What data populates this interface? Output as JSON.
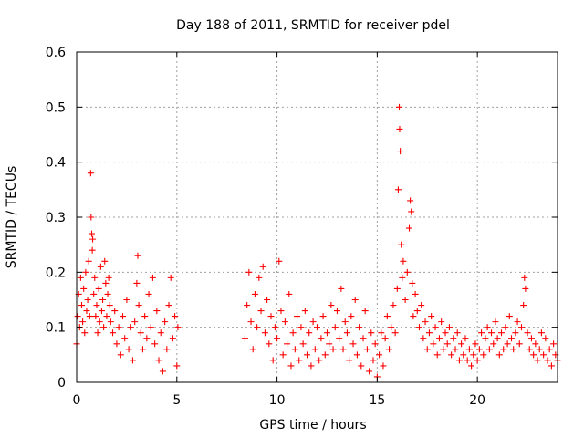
{
  "chart_data": {
    "type": "scatter",
    "title": "Day 188 of 2011, SRMTID for receiver pdel",
    "xlabel": "GPS time / hours",
    "ylabel": "SRMTID / TECUs",
    "xlim": [
      0,
      24
    ],
    "ylim": [
      0,
      0.6
    ],
    "xticks": [
      0,
      5,
      10,
      15,
      20
    ],
    "xtick_labels": [
      "0",
      "5",
      "10",
      "15",
      "20"
    ],
    "yticks": [
      0,
      0.1,
      0.2,
      0.3,
      0.4,
      0.5,
      0.6
    ],
    "ytick_labels": [
      "0",
      "0.1",
      "0.2",
      "0.3",
      "0.4",
      "0.5",
      "0.6"
    ],
    "grid": true,
    "marker": "plus",
    "series": [
      {
        "name": "SRMTID",
        "color": "#ff0000",
        "points": [
          [
            0.0,
            0.07
          ],
          [
            0.05,
            0.12
          ],
          [
            0.1,
            0.16
          ],
          [
            0.15,
            0.1
          ],
          [
            0.2,
            0.19
          ],
          [
            0.25,
            0.14
          ],
          [
            0.3,
            0.11
          ],
          [
            0.35,
            0.17
          ],
          [
            0.4,
            0.09
          ],
          [
            0.45,
            0.2
          ],
          [
            0.5,
            0.13
          ],
          [
            0.55,
            0.15
          ],
          [
            0.6,
            0.22
          ],
          [
            0.65,
            0.12
          ],
          [
            0.7,
            0.38
          ],
          [
            0.72,
            0.3
          ],
          [
            0.75,
            0.27
          ],
          [
            0.78,
            0.24
          ],
          [
            0.8,
            0.26
          ],
          [
            0.85,
            0.16
          ],
          [
            0.9,
            0.19
          ],
          [
            0.95,
            0.12
          ],
          [
            1.0,
            0.14
          ],
          [
            1.05,
            0.09
          ],
          [
            1.1,
            0.17
          ],
          [
            1.15,
            0.11
          ],
          [
            1.2,
            0.21
          ],
          [
            1.25,
            0.13
          ],
          [
            1.3,
            0.15
          ],
          [
            1.35,
            0.1
          ],
          [
            1.4,
            0.22
          ],
          [
            1.45,
            0.18
          ],
          [
            1.5,
            0.12
          ],
          [
            1.55,
            0.16
          ],
          [
            1.6,
            0.19
          ],
          [
            1.65,
            0.14
          ],
          [
            1.7,
            0.11
          ],
          [
            1.8,
            0.09
          ],
          [
            1.9,
            0.13
          ],
          [
            2.0,
            0.07
          ],
          [
            2.1,
            0.1
          ],
          [
            2.2,
            0.05
          ],
          [
            2.3,
            0.12
          ],
          [
            2.4,
            0.08
          ],
          [
            2.5,
            0.15
          ],
          [
            2.6,
            0.06
          ],
          [
            2.7,
            0.1
          ],
          [
            2.8,
            0.04
          ],
          [
            2.9,
            0.11
          ],
          [
            3.0,
            0.18
          ],
          [
            3.05,
            0.23
          ],
          [
            3.1,
            0.14
          ],
          [
            3.2,
            0.09
          ],
          [
            3.3,
            0.06
          ],
          [
            3.4,
            0.12
          ],
          [
            3.5,
            0.08
          ],
          [
            3.6,
            0.16
          ],
          [
            3.7,
            0.1
          ],
          [
            3.8,
            0.19
          ],
          [
            3.9,
            0.07
          ],
          [
            4.0,
            0.13
          ],
          [
            4.1,
            0.04
          ],
          [
            4.2,
            0.09
          ],
          [
            4.3,
            0.02
          ],
          [
            4.4,
            0.11
          ],
          [
            4.5,
            0.06
          ],
          [
            4.6,
            0.14
          ],
          [
            4.7,
            0.19
          ],
          [
            4.8,
            0.08
          ],
          [
            4.9,
            0.12
          ],
          [
            5.0,
            0.03
          ],
          [
            5.05,
            0.1
          ],
          [
            8.4,
            0.08
          ],
          [
            8.5,
            0.14
          ],
          [
            8.6,
            0.2
          ],
          [
            8.7,
            0.11
          ],
          [
            8.8,
            0.06
          ],
          [
            8.9,
            0.16
          ],
          [
            9.0,
            0.1
          ],
          [
            9.1,
            0.19
          ],
          [
            9.2,
            0.13
          ],
          [
            9.3,
            0.21
          ],
          [
            9.4,
            0.09
          ],
          [
            9.5,
            0.15
          ],
          [
            9.6,
            0.07
          ],
          [
            9.7,
            0.12
          ],
          [
            9.8,
            0.04
          ],
          [
            9.9,
            0.1
          ],
          [
            10.0,
            0.08
          ],
          [
            10.1,
            0.22
          ],
          [
            10.2,
            0.13
          ],
          [
            10.3,
            0.05
          ],
          [
            10.4,
            0.11
          ],
          [
            10.5,
            0.07
          ],
          [
            10.6,
            0.16
          ],
          [
            10.7,
            0.03
          ],
          [
            10.8,
            0.09
          ],
          [
            10.9,
            0.06
          ],
          [
            11.0,
            0.12
          ],
          [
            11.1,
            0.04
          ],
          [
            11.2,
            0.1
          ],
          [
            11.3,
            0.07
          ],
          [
            11.4,
            0.13
          ],
          [
            11.5,
            0.05
          ],
          [
            11.6,
            0.09
          ],
          [
            11.7,
            0.03
          ],
          [
            11.8,
            0.11
          ],
          [
            11.9,
            0.06
          ],
          [
            12.0,
            0.1
          ],
          [
            12.1,
            0.04
          ],
          [
            12.2,
            0.08
          ],
          [
            12.3,
            0.12
          ],
          [
            12.4,
            0.05
          ],
          [
            12.5,
            0.09
          ],
          [
            12.6,
            0.07
          ],
          [
            12.7,
            0.14
          ],
          [
            12.8,
            0.06
          ],
          [
            12.9,
            0.1
          ],
          [
            13.0,
            0.13
          ],
          [
            13.1,
            0.08
          ],
          [
            13.2,
            0.17
          ],
          [
            13.3,
            0.06
          ],
          [
            13.4,
            0.11
          ],
          [
            13.5,
            0.09
          ],
          [
            13.6,
            0.04
          ],
          [
            13.7,
            0.12
          ],
          [
            13.8,
            0.07
          ],
          [
            13.9,
            0.15
          ],
          [
            14.0,
            0.05
          ],
          [
            14.1,
            0.1
          ],
          [
            14.2,
            0.03
          ],
          [
            14.3,
            0.08
          ],
          [
            14.4,
            0.13
          ],
          [
            14.5,
            0.06
          ],
          [
            14.6,
            0.02
          ],
          [
            14.7,
            0.09
          ],
          [
            14.8,
            0.04
          ],
          [
            14.9,
            0.07
          ],
          [
            15.0,
            0.01
          ],
          [
            15.1,
            0.05
          ],
          [
            15.2,
            0.09
          ],
          [
            15.3,
            0.03
          ],
          [
            15.4,
            0.08
          ],
          [
            15.5,
            0.12
          ],
          [
            15.6,
            0.06
          ],
          [
            15.7,
            0.1
          ],
          [
            15.8,
            0.14
          ],
          [
            15.9,
            0.09
          ],
          [
            16.0,
            0.17
          ],
          [
            16.05,
            0.35
          ],
          [
            16.1,
            0.5
          ],
          [
            16.12,
            0.46
          ],
          [
            16.15,
            0.42
          ],
          [
            16.2,
            0.25
          ],
          [
            16.25,
            0.19
          ],
          [
            16.3,
            0.22
          ],
          [
            16.4,
            0.15
          ],
          [
            16.5,
            0.2
          ],
          [
            16.6,
            0.28
          ],
          [
            16.65,
            0.33
          ],
          [
            16.7,
            0.31
          ],
          [
            16.75,
            0.18
          ],
          [
            16.8,
            0.12
          ],
          [
            16.9,
            0.16
          ],
          [
            17.0,
            0.13
          ],
          [
            17.1,
            0.1
          ],
          [
            17.2,
            0.14
          ],
          [
            17.3,
            0.08
          ],
          [
            17.4,
            0.11
          ],
          [
            17.5,
            0.06
          ],
          [
            17.6,
            0.09
          ],
          [
            17.7,
            0.12
          ],
          [
            17.8,
            0.07
          ],
          [
            17.9,
            0.1
          ],
          [
            18.0,
            0.05
          ],
          [
            18.1,
            0.08
          ],
          [
            18.2,
            0.11
          ],
          [
            18.3,
            0.06
          ],
          [
            18.4,
            0.09
          ],
          [
            18.5,
            0.07
          ],
          [
            18.6,
            0.1
          ],
          [
            18.7,
            0.05
          ],
          [
            18.8,
            0.08
          ],
          [
            18.9,
            0.06
          ],
          [
            19.0,
            0.09
          ],
          [
            19.1,
            0.04
          ],
          [
            19.2,
            0.07
          ],
          [
            19.3,
            0.05
          ],
          [
            19.4,
            0.08
          ],
          [
            19.5,
            0.04
          ],
          [
            19.6,
            0.06
          ],
          [
            19.7,
            0.03
          ],
          [
            19.8,
            0.05
          ],
          [
            19.9,
            0.07
          ],
          [
            20.0,
            0.04
          ],
          [
            20.1,
            0.06
          ],
          [
            20.2,
            0.09
          ],
          [
            20.3,
            0.05
          ],
          [
            20.4,
            0.08
          ],
          [
            20.5,
            0.1
          ],
          [
            20.6,
            0.06
          ],
          [
            20.7,
            0.09
          ],
          [
            20.8,
            0.07
          ],
          [
            20.9,
            0.11
          ],
          [
            21.0,
            0.08
          ],
          [
            21.1,
            0.05
          ],
          [
            21.2,
            0.09
          ],
          [
            21.3,
            0.06
          ],
          [
            21.4,
            0.1
          ],
          [
            21.5,
            0.07
          ],
          [
            21.6,
            0.12
          ],
          [
            21.7,
            0.08
          ],
          [
            21.8,
            0.06
          ],
          [
            21.9,
            0.09
          ],
          [
            22.0,
            0.11
          ],
          [
            22.1,
            0.07
          ],
          [
            22.2,
            0.1
          ],
          [
            22.3,
            0.14
          ],
          [
            22.35,
            0.19
          ],
          [
            22.4,
            0.17
          ],
          [
            22.5,
            0.09
          ],
          [
            22.6,
            0.06
          ],
          [
            22.7,
            0.08
          ],
          [
            22.8,
            0.05
          ],
          [
            22.9,
            0.07
          ],
          [
            23.0,
            0.04
          ],
          [
            23.1,
            0.06
          ],
          [
            23.2,
            0.09
          ],
          [
            23.3,
            0.05
          ],
          [
            23.4,
            0.08
          ],
          [
            23.5,
            0.04
          ],
          [
            23.6,
            0.06
          ],
          [
            23.7,
            0.03
          ],
          [
            23.8,
            0.07
          ],
          [
            23.9,
            0.05
          ],
          [
            24.0,
            0.04
          ]
        ]
      }
    ]
  }
}
